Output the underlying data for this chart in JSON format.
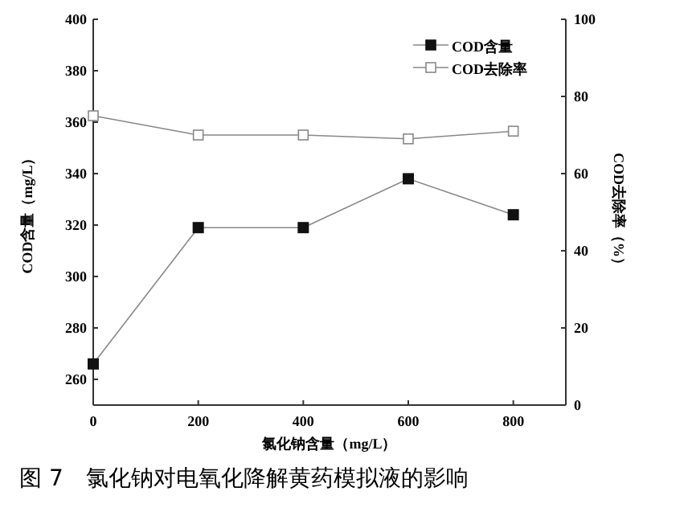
{
  "chart_data": {
    "type": "line",
    "xlabel": "氯化钠含量（mg/L）",
    "ylabel": "COD含量（mg/L）",
    "y2label": "COD去除率（%）",
    "annotations": [
      "图 7　氯化钠对电氧化降解黄药模拟液的影响"
    ],
    "x": [
      0,
      200,
      400,
      600,
      800
    ],
    "series": [
      {
        "name": "COD含量",
        "color": "#111111",
        "values": [
          266,
          319,
          319,
          338,
          324
        ],
        "marker": "square"
      },
      {
        "name": "COD去除率",
        "color": "#888888",
        "values": [
          75,
          70,
          70,
          69,
          71
        ],
        "axis": "y2",
        "marker": "square_open"
      }
    ],
    "xlim": [
      0,
      900
    ],
    "xticks": [
      0,
      200,
      400,
      600,
      800
    ],
    "ylim": [
      250,
      400
    ],
    "yticks": [
      260,
      280,
      300,
      320,
      340,
      360,
      380,
      400
    ],
    "y2lim": [
      0,
      100
    ],
    "y2ticks": [
      0,
      20,
      40,
      60,
      80,
      100
    ],
    "legend": "top right"
  }
}
